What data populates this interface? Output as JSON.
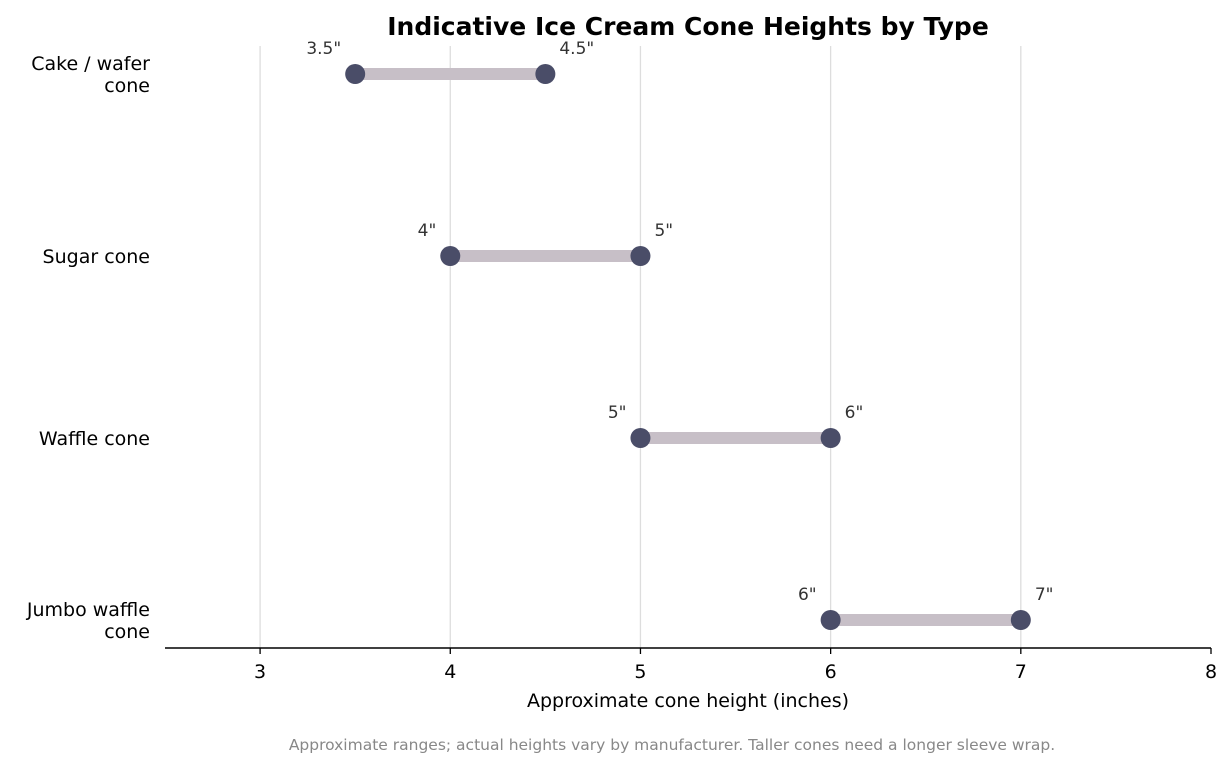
{
  "chart_data": {
    "type": "dumbbell",
    "title": "Indicative Ice Cream Cone Heights by Type",
    "xlabel": "Approximate cone height (inches)",
    "ylabel": "",
    "xlim": [
      2.5,
      8
    ],
    "xticks": [
      3,
      4,
      5,
      6,
      7,
      8
    ],
    "grid": "vertical",
    "categories": [
      [
        "Cake / wafer",
        "cone"
      ],
      [
        "Sugar cone"
      ],
      [
        "Waffle cone"
      ],
      [
        "Jumbo waffle",
        "cone"
      ]
    ],
    "ranges": [
      {
        "low": 3.5,
        "high": 4.5,
        "low_label": "3.5\"",
        "high_label": "4.5\""
      },
      {
        "low": 4,
        "high": 5,
        "low_label": "4\"",
        "high_label": "5\""
      },
      {
        "low": 5,
        "high": 6,
        "low_label": "5\"",
        "high_label": "6\""
      },
      {
        "low": 6,
        "high": 7,
        "low_label": "6\"",
        "high_label": "7\""
      }
    ],
    "footnote": "Approximate ranges; actual heights vary by manufacturer. Taller cones need a longer sleeve wrap.",
    "colors": {
      "dot": "#4a4d68",
      "bar": "#c7bfc7",
      "grid": "#dddddd",
      "axis": "#000000"
    }
  }
}
